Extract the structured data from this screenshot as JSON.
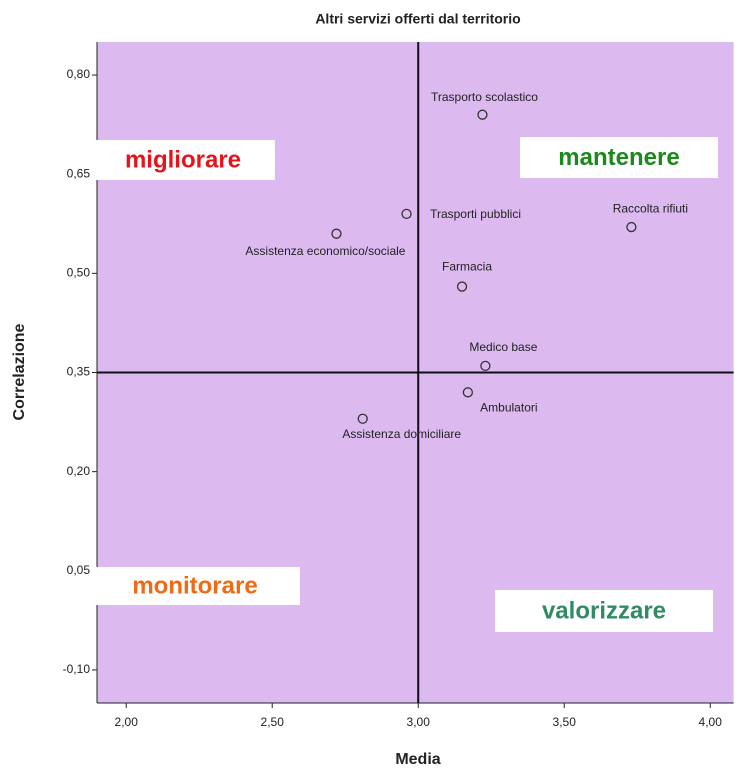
{
  "chart_data": {
    "type": "scatter",
    "title": "Altri servizi offerti dal territorio",
    "x_label": "Media",
    "y_label": "Correlazione",
    "xlim": [
      1.9,
      4.08
    ],
    "ylim": [
      -0.15,
      0.85
    ],
    "xticks": [
      {
        "value": 2.0,
        "label": "2,00"
      },
      {
        "value": 2.5,
        "label": "2,50"
      },
      {
        "value": 3.0,
        "label": "3,00"
      },
      {
        "value": 3.5,
        "label": "3,50"
      },
      {
        "value": 4.0,
        "label": "4,00"
      }
    ],
    "yticks": [
      {
        "value": -0.1,
        "label": "-0,10"
      },
      {
        "value": 0.05,
        "label": "0,05"
      },
      {
        "value": 0.2,
        "label": "0,20"
      },
      {
        "value": 0.35,
        "label": "0,35"
      },
      {
        "value": 0.5,
        "label": "0,50"
      },
      {
        "value": 0.65,
        "label": "0,65"
      },
      {
        "value": 0.8,
        "label": "0,80"
      }
    ],
    "reference_lines": {
      "x": 3.0,
      "y": 0.35
    },
    "background": "#dcbaf0",
    "marker_color": "#333333",
    "points": [
      {
        "name": "Trasporto scolastico",
        "x": 3.22,
        "y": 0.74
      },
      {
        "name": "Raccolta rifiuti",
        "x": 3.73,
        "y": 0.57
      },
      {
        "name": "Trasporti pubblici",
        "x": 2.96,
        "y": 0.59
      },
      {
        "name": "Assistenza economico/sociale",
        "x": 2.72,
        "y": 0.56
      },
      {
        "name": "Farmacia",
        "x": 3.15,
        "y": 0.48
      },
      {
        "name": "Medico base",
        "x": 3.23,
        "y": 0.36
      },
      {
        "name": "Ambulatori",
        "x": 3.17,
        "y": 0.32
      },
      {
        "name": "Assistenza domiciliare",
        "x": 2.81,
        "y": 0.28
      }
    ],
    "annotations": [
      {
        "text": "migliorare",
        "color": "#e8121a"
      },
      {
        "text": "mantenere",
        "color": "#1a8a1a"
      },
      {
        "text": "monitorare",
        "color": "#f06a14"
      },
      {
        "text": "valorizzare",
        "color": "#2e8b63"
      }
    ]
  }
}
